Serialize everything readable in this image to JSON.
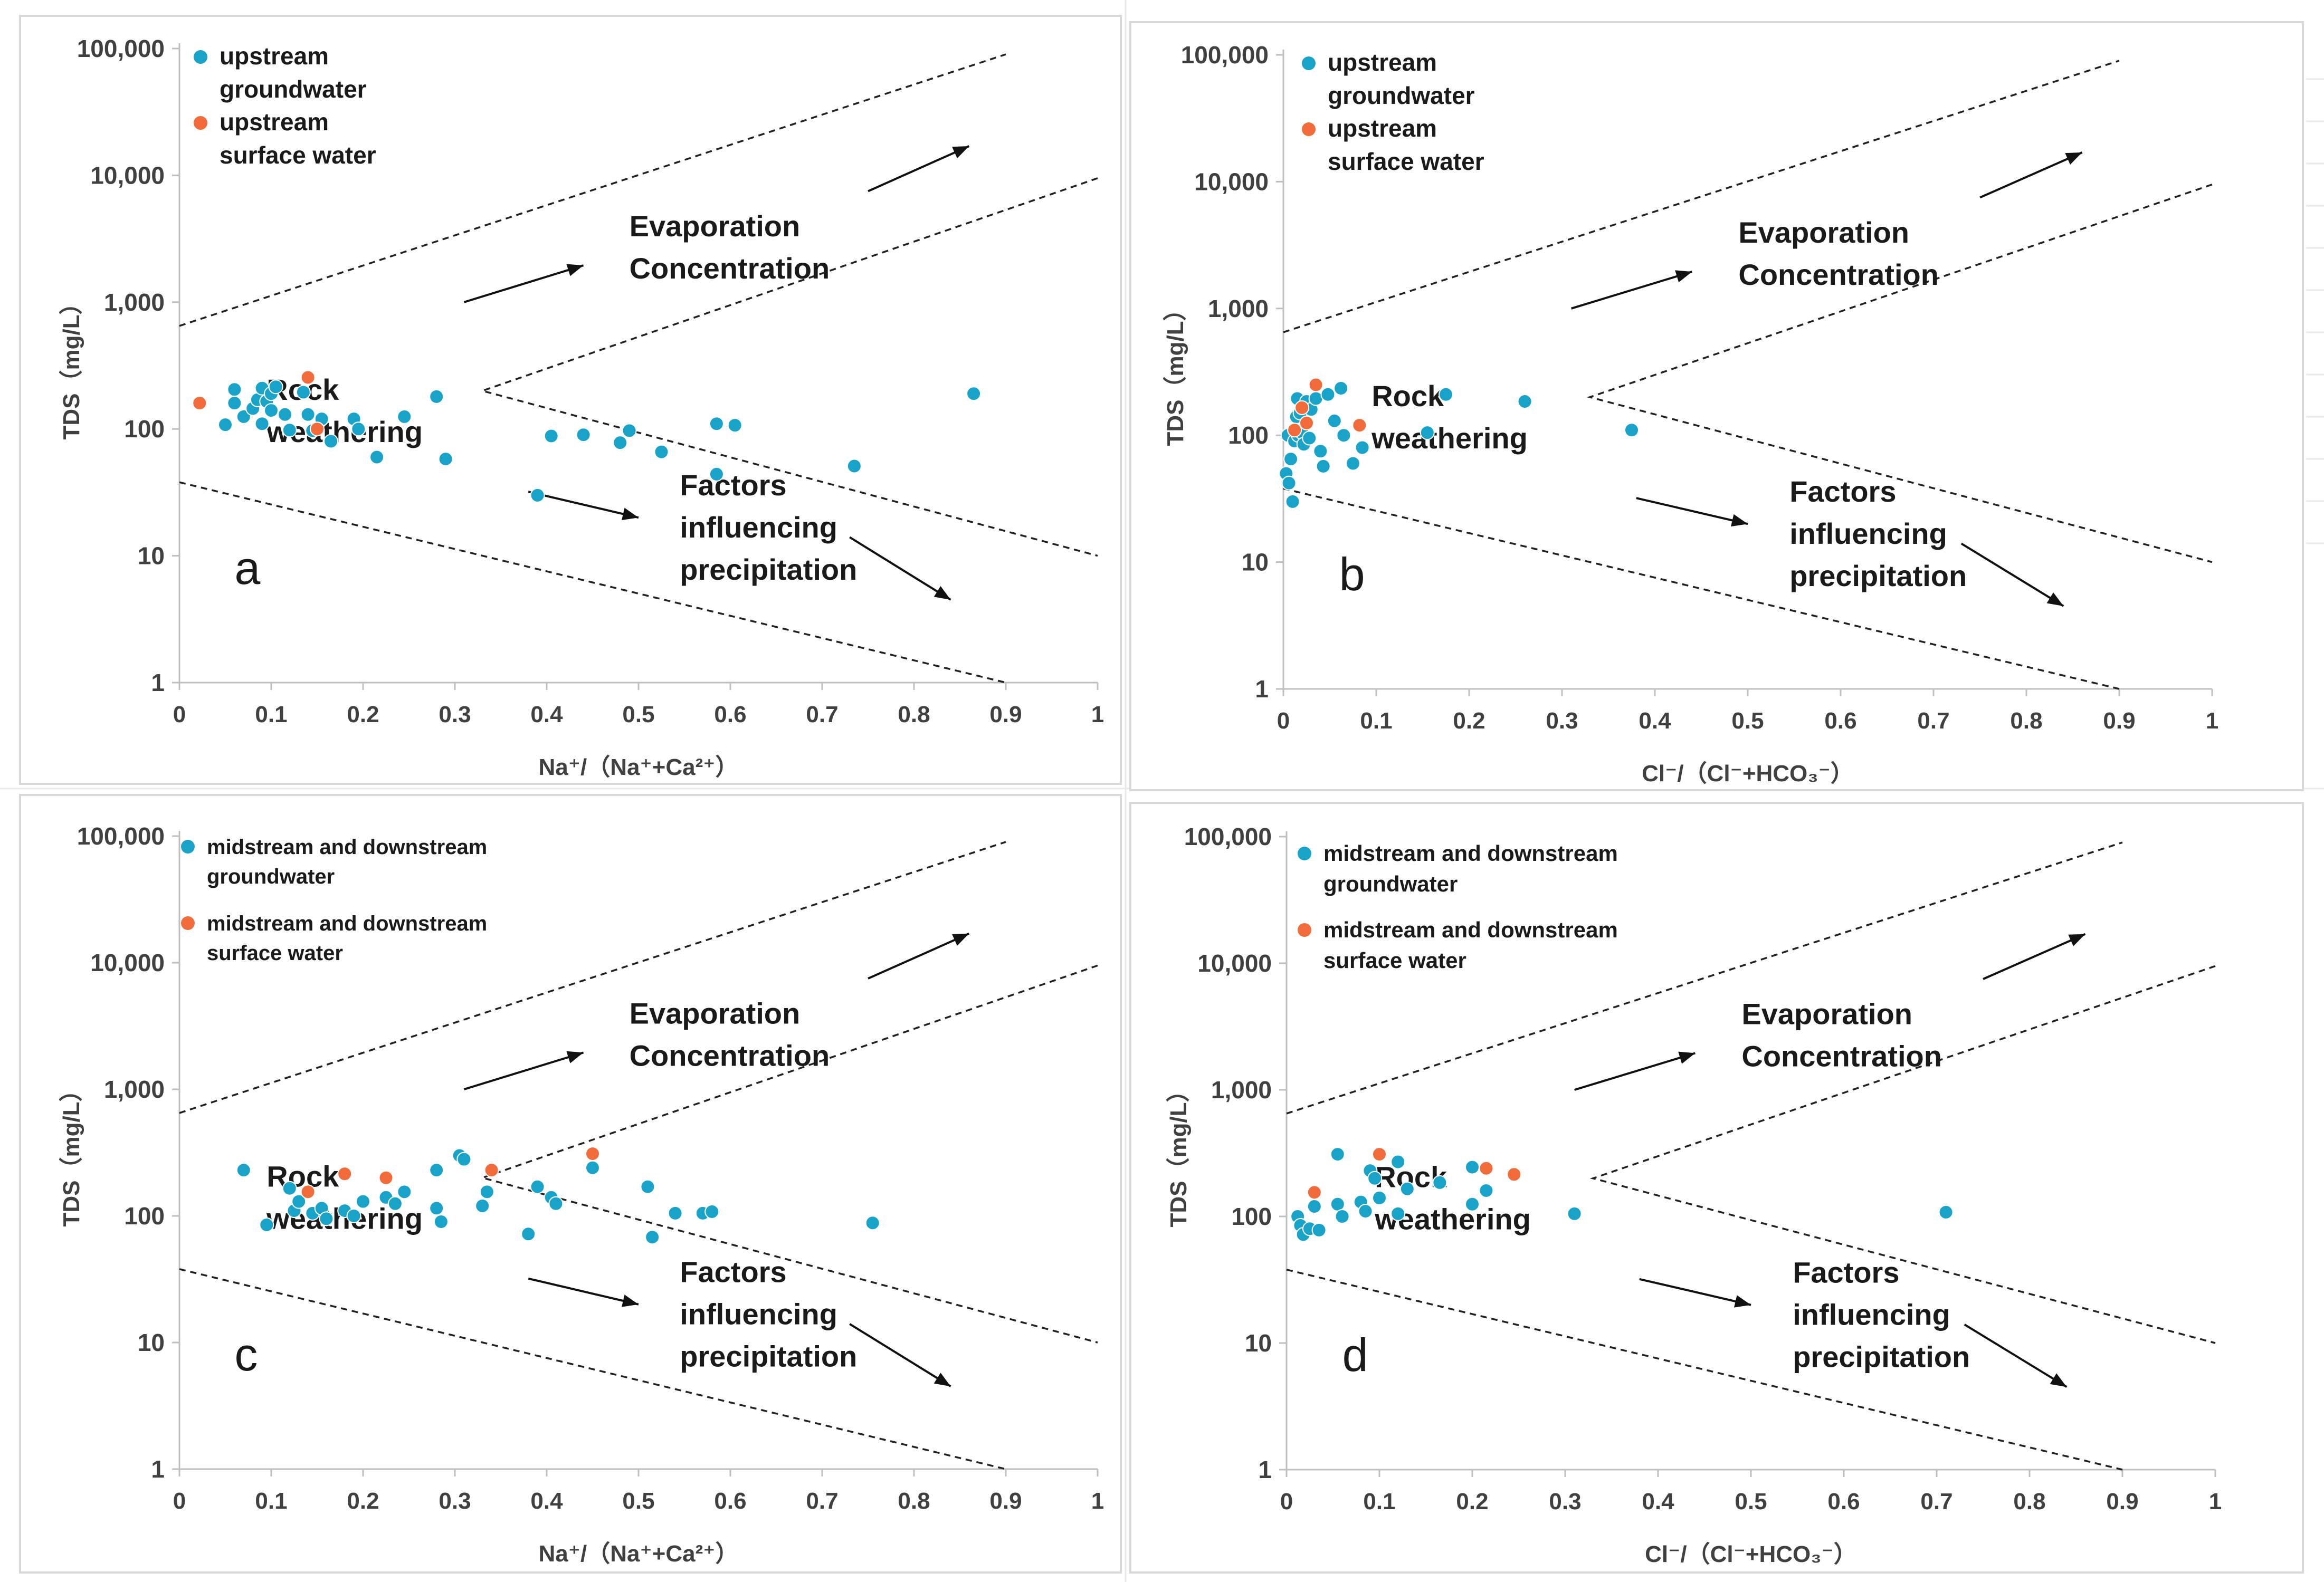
{
  "figure": {
    "annotations": {
      "evaporation": [
        "Evaporation",
        "Concentration"
      ],
      "rock": [
        "Rock",
        "weathering"
      ],
      "factors": [
        "Factors",
        "influencing",
        "precipitation"
      ]
    },
    "colors": {
      "groundwater": "#1aa3c8",
      "surface": "#f26b3a",
      "axis": "#bfbfbf",
      "text": "#404040"
    }
  },
  "chart_data": [
    {
      "panel": "a",
      "type": "scatter",
      "xlabel": "Na⁺/（Na⁺+Ca²⁺）",
      "ylabel": "TDS（mg/L）",
      "xlim": [
        0,
        1
      ],
      "ylim": [
        1,
        100000
      ],
      "yscale": "log",
      "xticks": [
        "0",
        "0.1",
        "0.2",
        "0.3",
        "0.4",
        "0.5",
        "0.6",
        "0.7",
        "0.8",
        "0.9",
        "1"
      ],
      "yticks": [
        "1",
        "10",
        "100",
        "1,000",
        "10,000",
        "100,000"
      ],
      "legend": [
        {
          "lines": [
            "upstream",
            "groundwater"
          ],
          "color": "groundwater"
        },
        {
          "lines": [
            "upstream",
            "surface water"
          ],
          "color": "surface"
        }
      ],
      "series": [
        {
          "name": "upstream groundwater",
          "color": "groundwater",
          "points": [
            [
              0.05,
              108
            ],
            [
              0.06,
              205
            ],
            [
              0.06,
              160
            ],
            [
              0.07,
              125
            ],
            [
              0.08,
              145
            ],
            [
              0.085,
              170
            ],
            [
              0.09,
              110
            ],
            [
              0.09,
              210
            ],
            [
              0.095,
              165
            ],
            [
              0.1,
              190
            ],
            [
              0.1,
              140
            ],
            [
              0.105,
              215
            ],
            [
              0.115,
              130
            ],
            [
              0.12,
              98
            ],
            [
              0.135,
              195
            ],
            [
              0.14,
              130
            ],
            [
              0.145,
              97
            ],
            [
              0.155,
              120
            ],
            [
              0.165,
              80
            ],
            [
              0.19,
              120
            ],
            [
              0.195,
              100
            ],
            [
              0.215,
              60
            ],
            [
              0.245,
              125
            ],
            [
              0.28,
              180
            ],
            [
              0.29,
              58
            ],
            [
              0.39,
              30
            ],
            [
              0.405,
              88
            ],
            [
              0.44,
              90
            ],
            [
              0.48,
              78
            ],
            [
              0.49,
              97
            ],
            [
              0.525,
              66
            ],
            [
              0.585,
              110
            ],
            [
              0.585,
              44
            ],
            [
              0.605,
              107
            ],
            [
              0.735,
              51
            ],
            [
              0.865,
              190
            ]
          ]
        },
        {
          "name": "upstream surface water",
          "color": "surface",
          "points": [
            [
              0.022,
              160
            ],
            [
              0.14,
              255
            ],
            [
              0.15,
              100
            ]
          ]
        }
      ],
      "letter": "a"
    },
    {
      "panel": "b",
      "type": "scatter",
      "xlabel": "Cl⁻/（Cl⁻+HCO₃⁻）",
      "ylabel": "TDS（mg/L）",
      "xlim": [
        0,
        1
      ],
      "ylim": [
        1,
        100000
      ],
      "yscale": "log",
      "xticks": [
        "0",
        "0.1",
        "0.2",
        "0.3",
        "0.4",
        "0.5",
        "0.6",
        "0.7",
        "0.8",
        "0.9",
        "1"
      ],
      "yticks": [
        "1",
        "10",
        "100",
        "1,000",
        "10,000",
        "100,000"
      ],
      "legend": [
        {
          "lines": [
            "upstream",
            "groundwater"
          ],
          "color": "groundwater"
        },
        {
          "lines": [
            "upstream",
            "surface water"
          ],
          "color": "surface"
        }
      ],
      "series": [
        {
          "name": "upstream groundwater",
          "color": "groundwater",
          "points": [
            [
              0.003,
              50
            ],
            [
              0.005,
              100
            ],
            [
              0.006,
              42
            ],
            [
              0.008,
              65
            ],
            [
              0.01,
              30
            ],
            [
              0.012,
              90
            ],
            [
              0.014,
              140
            ],
            [
              0.015,
              195
            ],
            [
              0.016,
              100
            ],
            [
              0.018,
              150
            ],
            [
              0.02,
              105
            ],
            [
              0.022,
              85
            ],
            [
              0.025,
              185
            ],
            [
              0.028,
              95
            ],
            [
              0.03,
              160
            ],
            [
              0.035,
              195
            ],
            [
              0.04,
              75
            ],
            [
              0.043,
              57
            ],
            [
              0.048,
              210
            ],
            [
              0.055,
              130
            ],
            [
              0.062,
              235
            ],
            [
              0.065,
              100
            ],
            [
              0.075,
              60
            ],
            [
              0.085,
              80
            ],
            [
              0.155,
              105
            ],
            [
              0.175,
              210
            ],
            [
              0.26,
              185
            ],
            [
              0.375,
              110
            ]
          ]
        },
        {
          "name": "upstream surface water",
          "color": "surface",
          "points": [
            [
              0.012,
              110
            ],
            [
              0.02,
              165
            ],
            [
              0.025,
              125
            ],
            [
              0.035,
              250
            ],
            [
              0.082,
              120
            ]
          ]
        }
      ],
      "letter": "b"
    },
    {
      "panel": "c",
      "type": "scatter",
      "xlabel": "Na⁺/（Na⁺+Ca²⁺）",
      "ylabel": "TDS（mg/L）",
      "xlim": [
        0,
        1
      ],
      "ylim": [
        1,
        100000
      ],
      "yscale": "log",
      "xticks": [
        "0",
        "0.1",
        "0.2",
        "0.3",
        "0.4",
        "0.5",
        "0.6",
        "0.7",
        "0.8",
        "0.9",
        "1"
      ],
      "yticks": [
        "1",
        "10",
        "100",
        "1,000",
        "10,000",
        "100,000"
      ],
      "legend": [
        {
          "lines": [
            "midstream and downstream",
            "groundwater"
          ],
          "color": "groundwater"
        },
        {
          "lines": [
            "midstream and downstream",
            "surface water"
          ],
          "color": "surface"
        }
      ],
      "series": [
        {
          "name": "midstream and downstream groundwater",
          "color": "groundwater",
          "points": [
            [
              0.07,
              230
            ],
            [
              0.095,
              85
            ],
            [
              0.12,
              165
            ],
            [
              0.125,
              110
            ],
            [
              0.13,
              130
            ],
            [
              0.145,
              105
            ],
            [
              0.155,
              115
            ],
            [
              0.16,
              95
            ],
            [
              0.18,
              110
            ],
            [
              0.19,
              100
            ],
            [
              0.2,
              130
            ],
            [
              0.225,
              140
            ],
            [
              0.235,
              125
            ],
            [
              0.245,
              155
            ],
            [
              0.28,
              230
            ],
            [
              0.285,
              90
            ],
            [
              0.28,
              115
            ],
            [
              0.305,
              300
            ],
            [
              0.31,
              280
            ],
            [
              0.33,
              120
            ],
            [
              0.335,
              155
            ],
            [
              0.38,
              72
            ],
            [
              0.39,
              170
            ],
            [
              0.405,
              140
            ],
            [
              0.41,
              125
            ],
            [
              0.45,
              240
            ],
            [
              0.51,
              170
            ],
            [
              0.515,
              68
            ],
            [
              0.54,
              105
            ],
            [
              0.57,
              105
            ],
            [
              0.58,
              108
            ],
            [
              0.755,
              88
            ]
          ]
        },
        {
          "name": "midstream and downstream surface water",
          "color": "surface",
          "points": [
            [
              0.14,
              155
            ],
            [
              0.18,
              215
            ],
            [
              0.225,
              200
            ],
            [
              0.34,
              230
            ],
            [
              0.45,
              310
            ]
          ]
        }
      ],
      "letter": "c"
    },
    {
      "panel": "d",
      "type": "scatter",
      "xlabel": "Cl⁻/（Cl⁻+HCO₃⁻）",
      "ylabel": "TDS（mg/L）",
      "xlim": [
        0,
        1
      ],
      "ylim": [
        1,
        100000
      ],
      "yscale": "log",
      "xticks": [
        "0",
        "0.1",
        "0.2",
        "0.3",
        "0.4",
        "0.5",
        "0.6",
        "0.7",
        "0.8",
        "0.9",
        "1"
      ],
      "yticks": [
        "1",
        "10",
        "100",
        "1,000",
        "10,000",
        "100,000"
      ],
      "legend": [
        {
          "lines": [
            "midstream and downstream",
            "groundwater"
          ],
          "color": "groundwater"
        },
        {
          "lines": [
            "midstream and downstream",
            "surface water"
          ],
          "color": "surface"
        }
      ],
      "series": [
        {
          "name": "midstream and downstream groundwater",
          "color": "groundwater",
          "points": [
            [
              0.012,
              100
            ],
            [
              0.015,
              85
            ],
            [
              0.018,
              72
            ],
            [
              0.025,
              80
            ],
            [
              0.03,
              120
            ],
            [
              0.035,
              78
            ],
            [
              0.055,
              310
            ],
            [
              0.055,
              125
            ],
            [
              0.06,
              100
            ],
            [
              0.08,
              130
            ],
            [
              0.085,
              110
            ],
            [
              0.09,
              230
            ],
            [
              0.095,
              200
            ],
            [
              0.1,
              140
            ],
            [
              0.12,
              270
            ],
            [
              0.12,
              105
            ],
            [
              0.13,
              165
            ],
            [
              0.165,
              185
            ],
            [
              0.2,
              245
            ],
            [
              0.2,
              125
            ],
            [
              0.215,
              160
            ],
            [
              0.31,
              105
            ],
            [
              0.71,
              108
            ]
          ]
        },
        {
          "name": "midstream and downstream surface water",
          "color": "surface",
          "points": [
            [
              0.03,
              155
            ],
            [
              0.1,
              310
            ],
            [
              0.215,
              240
            ],
            [
              0.245,
              215
            ]
          ]
        }
      ],
      "letter": "d"
    }
  ]
}
